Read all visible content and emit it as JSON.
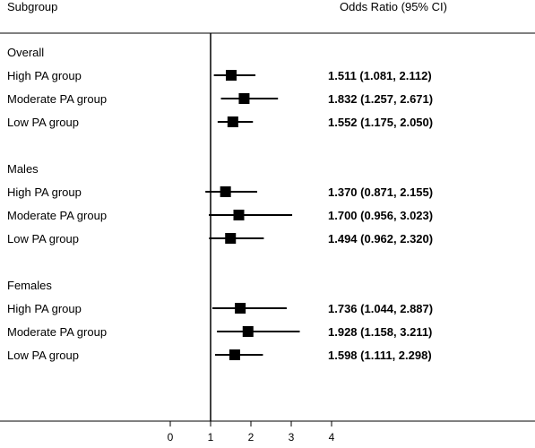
{
  "chart_data": {
    "type": "forest",
    "header": {
      "subgroup": "Subgroup",
      "odds_ratio": "Odds Ratio (95% CI)"
    },
    "xlim": [
      0,
      4
    ],
    "ticks": [
      0,
      1,
      2,
      3,
      4
    ],
    "reference_line": 1,
    "groups": [
      {
        "name": "Overall",
        "rows": [
          {
            "label": "High PA group",
            "or": 1.511,
            "lo": 1.081,
            "hi": 2.112,
            "text": "1.511 (1.081, 2.112)"
          },
          {
            "label": "Moderate PA group",
            "or": 1.832,
            "lo": 1.257,
            "hi": 2.671,
            "text": "1.832 (1.257, 2.671)"
          },
          {
            "label": "Low PA group",
            "or": 1.552,
            "lo": 1.175,
            "hi": 2.05,
            "text": "1.552 (1.175, 2.050)"
          }
        ]
      },
      {
        "name": "Males",
        "rows": [
          {
            "label": "High PA group",
            "or": 1.37,
            "lo": 0.871,
            "hi": 2.155,
            "text": "1.370 (0.871, 2.155)"
          },
          {
            "label": "Moderate PA group",
            "or": 1.7,
            "lo": 0.956,
            "hi": 3.023,
            "text": "1.700 (0.956, 3.023)"
          },
          {
            "label": "Low PA group",
            "or": 1.494,
            "lo": 0.962,
            "hi": 2.32,
            "text": "1.494 (0.962, 2.320)"
          }
        ]
      },
      {
        "name": "Females",
        "rows": [
          {
            "label": "High PA group",
            "or": 1.736,
            "lo": 1.044,
            "hi": 2.887,
            "text": "1.736 (1.044, 2.887)"
          },
          {
            "label": "Moderate PA group",
            "or": 1.928,
            "lo": 1.158,
            "hi": 3.211,
            "text": "1.928 (1.158, 3.211)"
          },
          {
            "label": "Low PA group",
            "or": 1.598,
            "lo": 1.111,
            "hi": 2.298,
            "text": "1.598 (1.111, 2.298)"
          }
        ]
      }
    ]
  }
}
